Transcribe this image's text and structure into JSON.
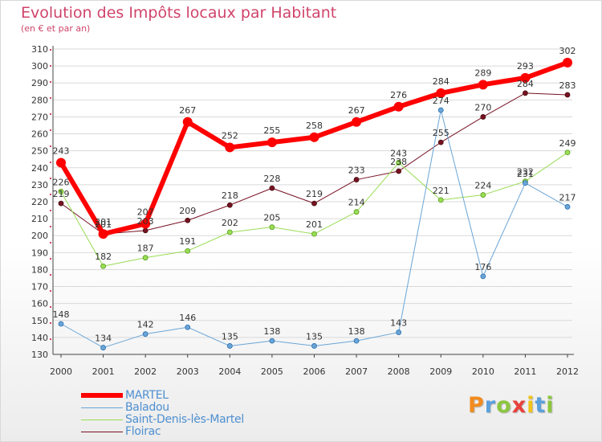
{
  "chart_data": {
    "type": "line",
    "title": "Evolution des Impôts locaux par Habitant",
    "subtitle": "(en € et par an)",
    "xlabel": "",
    "ylabel": "",
    "ylim": [
      130,
      310
    ],
    "y_ticks": [
      130,
      140,
      150,
      160,
      170,
      180,
      190,
      200,
      210,
      220,
      230,
      240,
      250,
      260,
      270,
      280,
      290,
      300,
      310
    ],
    "grid": true,
    "legend_position": "bottom-left",
    "categories": [
      "2000",
      "2001",
      "2002",
      "2003",
      "2004",
      "2005",
      "2006",
      "2007",
      "2008",
      "2009",
      "2010",
      "2011",
      "2012"
    ],
    "series": [
      {
        "name": "MARTEL",
        "color": "#ff0000",
        "values": [
          243,
          201,
          207,
          267,
          252,
          255,
          258,
          267,
          276,
          284,
          289,
          293,
          302
        ]
      },
      {
        "name": "Baladou",
        "color": "#6aa5d6",
        "values": [
          148,
          134,
          142,
          146,
          135,
          138,
          135,
          138,
          143,
          274,
          176,
          231,
          217
        ]
      },
      {
        "name": "Saint-Denis-lès-Martel",
        "color": "#99dd55",
        "values": [
          226,
          182,
          187,
          191,
          202,
          205,
          201,
          214,
          243,
          221,
          224,
          232,
          249
        ]
      },
      {
        "name": "Floirac",
        "color": "#771122",
        "values": [
          219,
          201,
          203,
          209,
          218,
          228,
          219,
          233,
          238,
          255,
          270,
          284,
          283
        ]
      }
    ]
  },
  "logo": {
    "text": "Proxiti",
    "colors": [
      "#f28b1e",
      "#5aa0dc",
      "#8cc63f",
      "#e8403b",
      "#f2c318",
      "#5aa0dc",
      "#8cc63f"
    ]
  }
}
